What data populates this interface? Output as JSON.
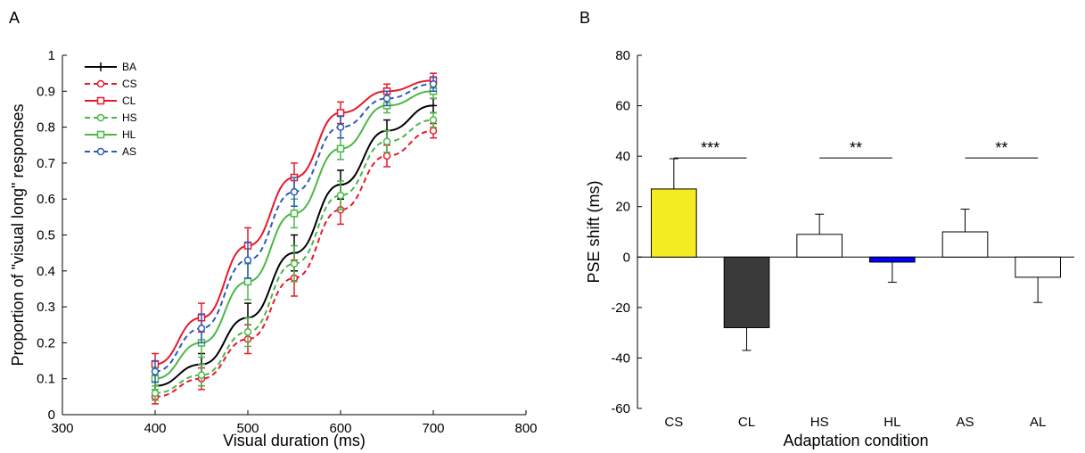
{
  "panels": {
    "a": {
      "letter": "A"
    },
    "b": {
      "letter": "B"
    }
  },
  "chart_data": [
    {
      "type": "line",
      "panel": "A",
      "title": "",
      "xlabel": "Visual duration (ms)",
      "ylabel": "Proportion of \"visual long\" responses",
      "xlim": [
        300,
        800
      ],
      "ylim": [
        0,
        1
      ],
      "x_ticks": [
        "300",
        "400",
        "500",
        "600",
        "700",
        "800"
      ],
      "y_ticks": [
        "0",
        "0.1",
        "0.2",
        "0.3",
        "0.4",
        "0.5",
        "0.6",
        "0.7",
        "0.8",
        "0.9",
        "1"
      ],
      "legend_position": "top-left",
      "x": [
        400,
        450,
        500,
        550,
        600,
        650,
        700
      ],
      "series": [
        {
          "name": "BA",
          "color": "#000000",
          "dash": "",
          "marker": "plus",
          "values": [
            0.08,
            0.14,
            0.27,
            0.45,
            0.64,
            0.79,
            0.86
          ],
          "err": [
            0.02,
            0.03,
            0.04,
            0.05,
            0.04,
            0.03,
            0.02
          ]
        },
        {
          "name": "CS",
          "color": "#e8192c",
          "dash": "6,4",
          "marker": "circle",
          "values": [
            0.05,
            0.1,
            0.21,
            0.38,
            0.57,
            0.72,
            0.79
          ],
          "err": [
            0.02,
            0.03,
            0.04,
            0.05,
            0.04,
            0.03,
            0.02
          ]
        },
        {
          "name": "CL",
          "color": "#e8192c",
          "dash": "",
          "marker": "square",
          "values": [
            0.14,
            0.27,
            0.47,
            0.66,
            0.84,
            0.9,
            0.93
          ],
          "err": [
            0.03,
            0.04,
            0.05,
            0.04,
            0.03,
            0.02,
            0.02
          ]
        },
        {
          "name": "HS",
          "color": "#4cb748",
          "dash": "6,4",
          "marker": "circle",
          "values": [
            0.06,
            0.11,
            0.23,
            0.42,
            0.61,
            0.76,
            0.82
          ],
          "err": [
            0.02,
            0.03,
            0.04,
            0.05,
            0.04,
            0.03,
            0.02
          ]
        },
        {
          "name": "HL",
          "color": "#4cb748",
          "dash": "",
          "marker": "square",
          "values": [
            0.1,
            0.2,
            0.37,
            0.56,
            0.74,
            0.86,
            0.9
          ],
          "err": [
            0.03,
            0.04,
            0.05,
            0.04,
            0.03,
            0.02,
            0.02
          ]
        },
        {
          "name": "AS",
          "color": "#2a5cb8",
          "dash": "6,4",
          "marker": "circle",
          "values": [
            0.12,
            0.24,
            0.43,
            0.62,
            0.8,
            0.88,
            0.92
          ],
          "err": [
            0.03,
            0.04,
            0.05,
            0.04,
            0.03,
            0.02,
            0.02
          ]
        }
      ]
    },
    {
      "type": "bar",
      "panel": "B",
      "title": "",
      "xlabel": "Adaptation condition",
      "ylabel": "PSE shift (ms)",
      "ylim": [
        -60,
        80
      ],
      "y_ticks": [
        "-60",
        "-40",
        "-20",
        "0",
        "20",
        "40",
        "60",
        "80"
      ],
      "categories": [
        "CS",
        "CL",
        "HS",
        "HL",
        "AS",
        "AL"
      ],
      "values": [
        27,
        -28,
        9,
        -2,
        10,
        -8
      ],
      "err": [
        12,
        9,
        8,
        8,
        9,
        10
      ],
      "colors": [
        "#f4ec23",
        "#3a3a3a",
        "#ffffff",
        "#0000ff",
        "#ffffff",
        "#ffffff"
      ],
      "significance": [
        {
          "from": "CS",
          "to": "CL",
          "label": "***"
        },
        {
          "from": "HS",
          "to": "HL",
          "label": "**"
        },
        {
          "from": "AS",
          "to": "AL",
          "label": "**"
        }
      ]
    }
  ]
}
